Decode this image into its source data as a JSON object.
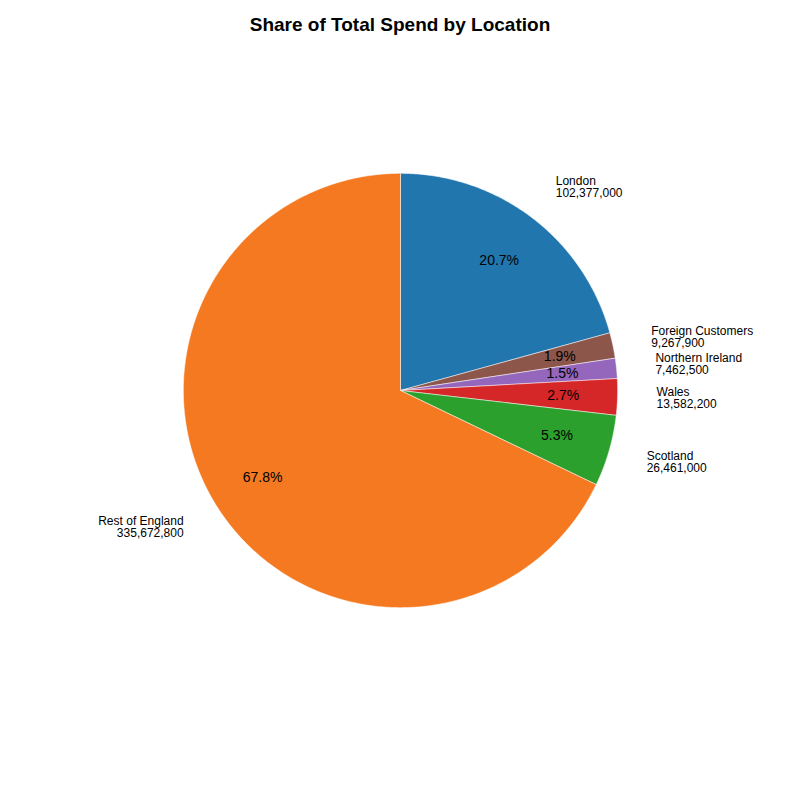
{
  "chart_data": {
    "type": "pie",
    "title": "Share of Total Spend by Location",
    "categories": [
      "London",
      "Foreign Customers",
      "Northern Ireland",
      "Wales",
      "Scotland",
      "Rest of England"
    ],
    "values": [
      20.7,
      1.9,
      1.5,
      2.7,
      5.3,
      67.8
    ],
    "value_labels": [
      "20.7%",
      "1.9%",
      "1.5%",
      "2.7%",
      "5.3%",
      "67.8%"
    ],
    "amounts": [
      102377000,
      9267900,
      7462500,
      13582200,
      26461000,
      335672800
    ],
    "amount_labels": [
      "102,377,000",
      "9,267,900",
      "7,462,500",
      "13,582,200",
      "26,461,000",
      "335,672,800"
    ],
    "colors": [
      "#2176ae",
      "#8c564b",
      "#9467bd",
      "#d62728",
      "#2ca02c",
      "#f47920"
    ],
    "data_labels": true
  }
}
